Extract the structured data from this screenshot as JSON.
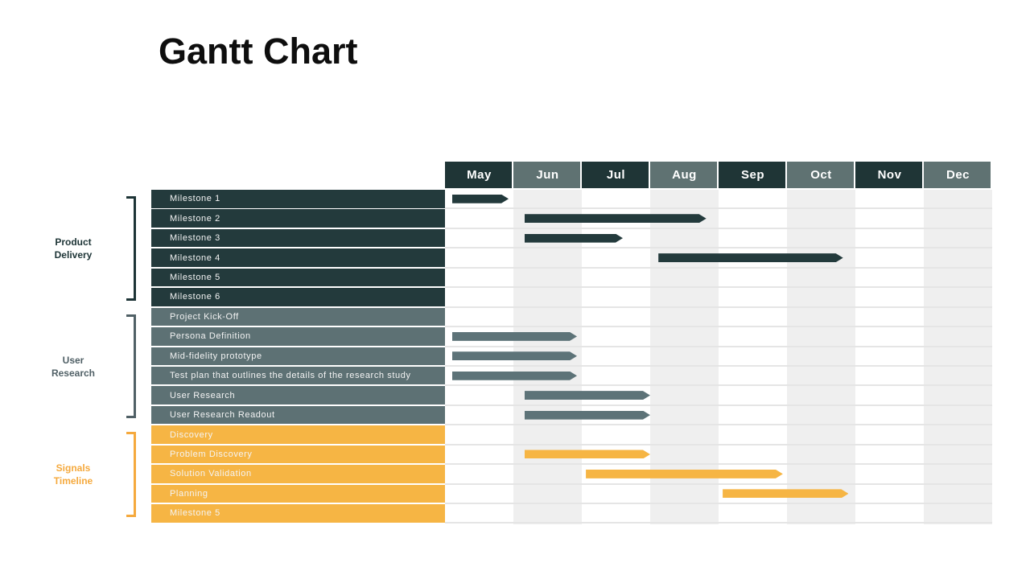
{
  "title": "Gantt Chart",
  "colors": {
    "header_dark": "#1f3536",
    "header_slate": "#5f7272",
    "column_alt": "#efefef",
    "row_separator": "#e5e5e5",
    "dark_teal": "#233a3c",
    "slate": "#5d7174",
    "slate_bar": "#5d7378",
    "orange": "#f6b544",
    "orange_text": "#f5a93d"
  },
  "chart_data": {
    "type": "gantt",
    "title": "Gantt Chart",
    "x_axis": {
      "unit": "month",
      "labels": [
        "May",
        "Jun",
        "Jul",
        "Aug",
        "Sep",
        "Oct",
        "Nov",
        "Dec"
      ],
      "note": "numeric task offsets are months after May 1 (May=0..1, Jun=1..2, ...)"
    },
    "groups": [
      {
        "name": "Product Delivery",
        "label_lines": [
          "Product",
          "Delivery"
        ],
        "row_color": "#233a3c",
        "bar_color": "#233a3c",
        "text_color": "#1d3436",
        "rows": [
          0,
          5
        ]
      },
      {
        "name": "User Research",
        "label_lines": [
          "User",
          "Research"
        ],
        "row_color": "#5d7174",
        "bar_color": "#5d7378",
        "text_color": "#506066",
        "rows": [
          6,
          11
        ]
      },
      {
        "name": "Signals Timeline",
        "label_lines": [
          "Signals",
          "Timeline"
        ],
        "row_color": "#f6b544",
        "bar_color": "#f6b544",
        "text_color": "#f5a93d",
        "rows": [
          12,
          16
        ]
      }
    ],
    "tasks": [
      {
        "group": 0,
        "name": "Milestone 1",
        "start": 0.1,
        "end": 0.93
      },
      {
        "group": 0,
        "name": "Milestone 2",
        "start": 1.16,
        "end": 3.82
      },
      {
        "group": 0,
        "name": "Milestone 3",
        "start": 1.16,
        "end": 2.6
      },
      {
        "group": 0,
        "name": "Milestone 4",
        "start": 3.12,
        "end": 5.82
      },
      {
        "group": 0,
        "name": "Milestone 5",
        "start": null,
        "end": null
      },
      {
        "group": 0,
        "name": "Milestone 6",
        "start": null,
        "end": null
      },
      {
        "group": 1,
        "name": "Project Kick-Off",
        "start": null,
        "end": null
      },
      {
        "group": 1,
        "name": "Persona Definition",
        "start": 0.1,
        "end": 1.93
      },
      {
        "group": 1,
        "name": "Mid-fidelity prototype",
        "start": 0.1,
        "end": 1.93
      },
      {
        "group": 1,
        "name": "Test plan that outlines the details of the research study",
        "start": 0.1,
        "end": 1.93
      },
      {
        "group": 1,
        "name": "User Research",
        "start": 1.16,
        "end": 3.0
      },
      {
        "group": 1,
        "name": "User Research Readout",
        "start": 1.16,
        "end": 3.0
      },
      {
        "group": 2,
        "name": "Discovery",
        "start": null,
        "end": null
      },
      {
        "group": 2,
        "name": "Problem Discovery",
        "start": 1.16,
        "end": 3.0
      },
      {
        "group": 2,
        "name": "Solution Validation",
        "start": 2.06,
        "end": 4.94
      },
      {
        "group": 2,
        "name": "Planning",
        "start": 4.06,
        "end": 5.9
      },
      {
        "group": 2,
        "name": "Milestone 5",
        "start": null,
        "end": null
      }
    ]
  }
}
